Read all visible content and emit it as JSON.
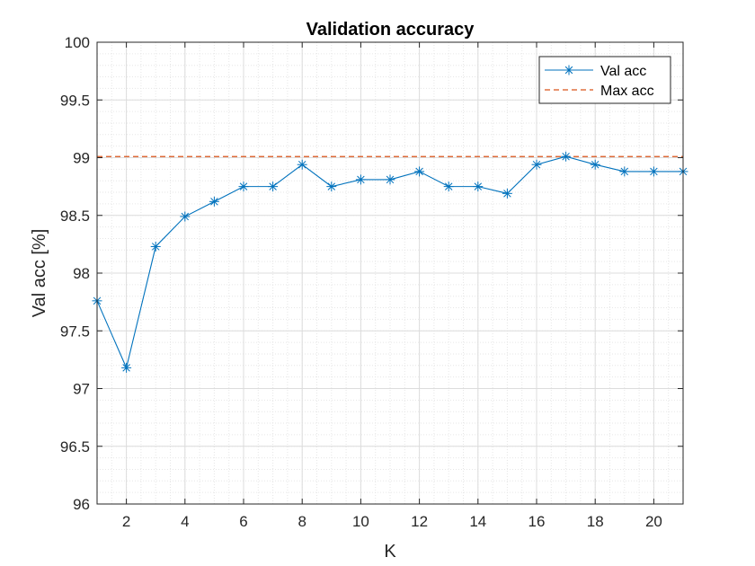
{
  "chart_data": {
    "type": "line",
    "title": "Validation accuracy",
    "xlabel": "K",
    "ylabel": "Val acc [%]",
    "xlim": [
      1,
      21
    ],
    "ylim": [
      96,
      100
    ],
    "xticks": [
      2,
      4,
      6,
      8,
      10,
      12,
      14,
      16,
      18,
      20
    ],
    "yticks": [
      96,
      96.5,
      97,
      97.5,
      98,
      98.5,
      99,
      99.5,
      100
    ],
    "grid": "on (major and minor)",
    "legend_location": "top-right",
    "series": [
      {
        "name": "Val acc",
        "style": "solid line with asterisk markers",
        "color": "#0072BD",
        "x": [
          1,
          2,
          3,
          4,
          5,
          6,
          7,
          8,
          9,
          10,
          11,
          12,
          13,
          14,
          15,
          16,
          17,
          18,
          19,
          20,
          21
        ],
        "y": [
          97.76,
          97.18,
          98.23,
          98.49,
          98.62,
          98.75,
          98.75,
          98.94,
          98.75,
          98.81,
          98.81,
          98.88,
          98.75,
          98.75,
          98.69,
          98.94,
          99.01,
          98.94,
          98.88,
          98.88,
          98.88
        ]
      },
      {
        "name": "Max acc",
        "style": "dashed horizontal line",
        "color": "#D95319",
        "y_constant": 99.01
      }
    ]
  }
}
